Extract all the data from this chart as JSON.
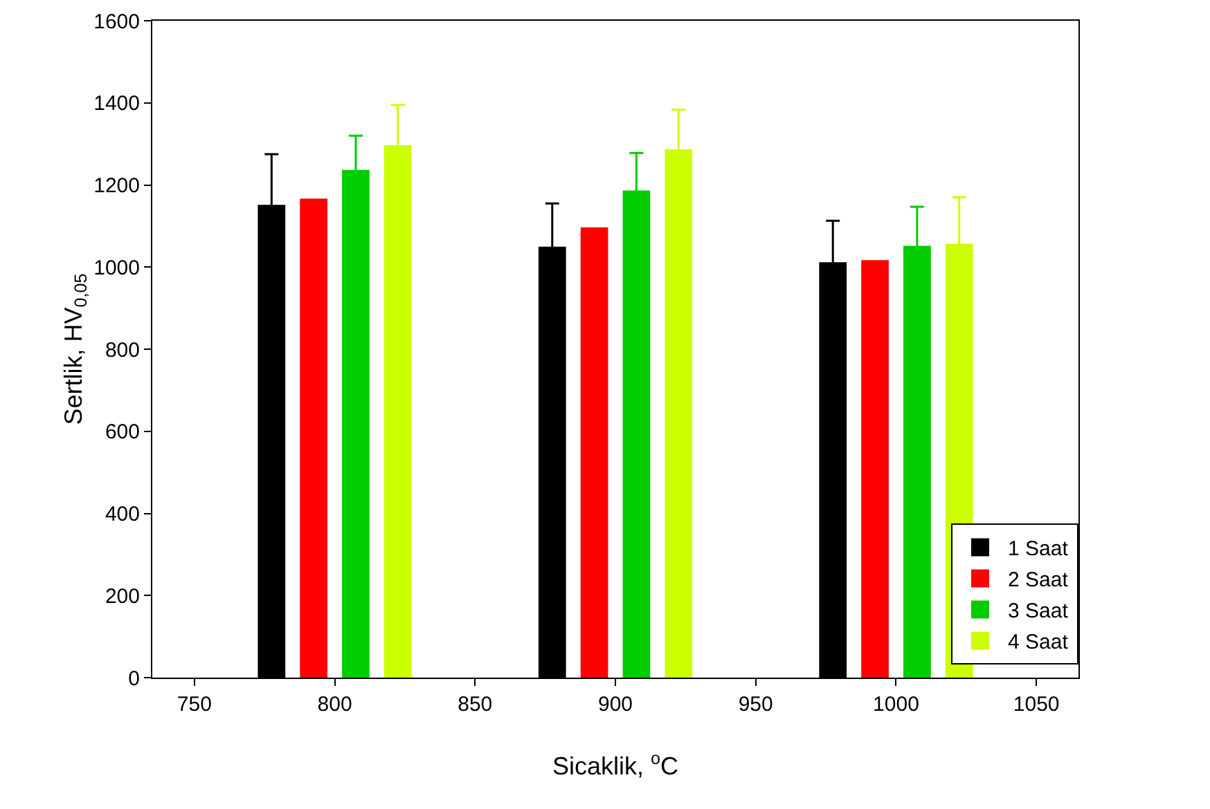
{
  "chart_data": {
    "type": "bar",
    "xlabel": "Sicaklik, $^{o}$C",
    "ylabel": "Sertlik, HV$_{0,05}$",
    "x": [
      800,
      900,
      1000
    ],
    "series": [
      {
        "name": "1 Saat",
        "color": "#000000",
        "values": [
          1150,
          1048,
          1010
        ],
        "errors": [
          125,
          107,
          103
        ]
      },
      {
        "name": "2 Saat",
        "color": "#ff0000",
        "values": [
          1165,
          1095,
          1015
        ]
      },
      {
        "name": "3 Saat",
        "color": "#00cc00",
        "values": [
          1235,
          1185,
          1050
        ],
        "errors": [
          85,
          93,
          97
        ]
      },
      {
        "name": "4 Saat",
        "color": "#ccff00",
        "values": [
          1295,
          1285,
          1055
        ],
        "errors": [
          100,
          98,
          115
        ]
      }
    ],
    "xlim": [
      735,
      1065
    ],
    "xticks": [
      750,
      800,
      850,
      900,
      950,
      1000,
      1050
    ],
    "ylim": [
      0,
      1600
    ],
    "yticks": [
      0,
      200,
      400,
      600,
      800,
      1000,
      1200,
      1400,
      1600
    ],
    "grid": false,
    "legend": "bottom right"
  }
}
